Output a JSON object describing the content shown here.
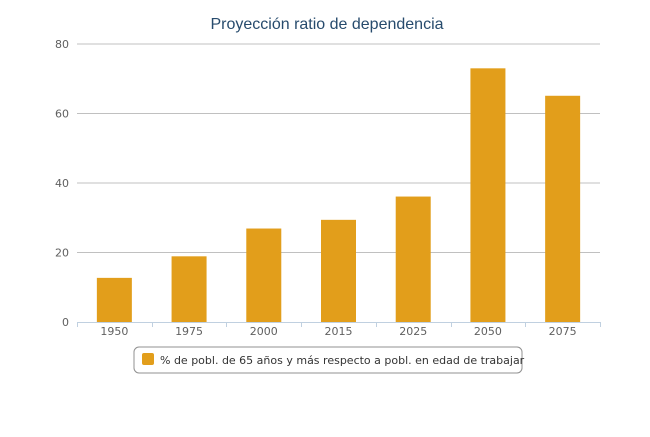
{
  "chart_data": {
    "type": "bar",
    "title": "Proyección ratio de dependencia",
    "categories": [
      "1950",
      "1975",
      "2000",
      "2015",
      "2025",
      "2050",
      "2075"
    ],
    "series": [
      {
        "name": "% de pobl. de 65 años y más respecto a pobl. en edad de trabajar",
        "values": [
          12.7,
          18.9,
          26.9,
          29.4,
          36.1,
          73.0,
          65.1
        ],
        "color": "#e29e1b"
      }
    ],
    "y_ticks": [
      "0",
      "20",
      "40",
      "60",
      "80"
    ],
    "ylim": [
      0,
      80
    ],
    "grid": true,
    "legend": "bottom"
  }
}
